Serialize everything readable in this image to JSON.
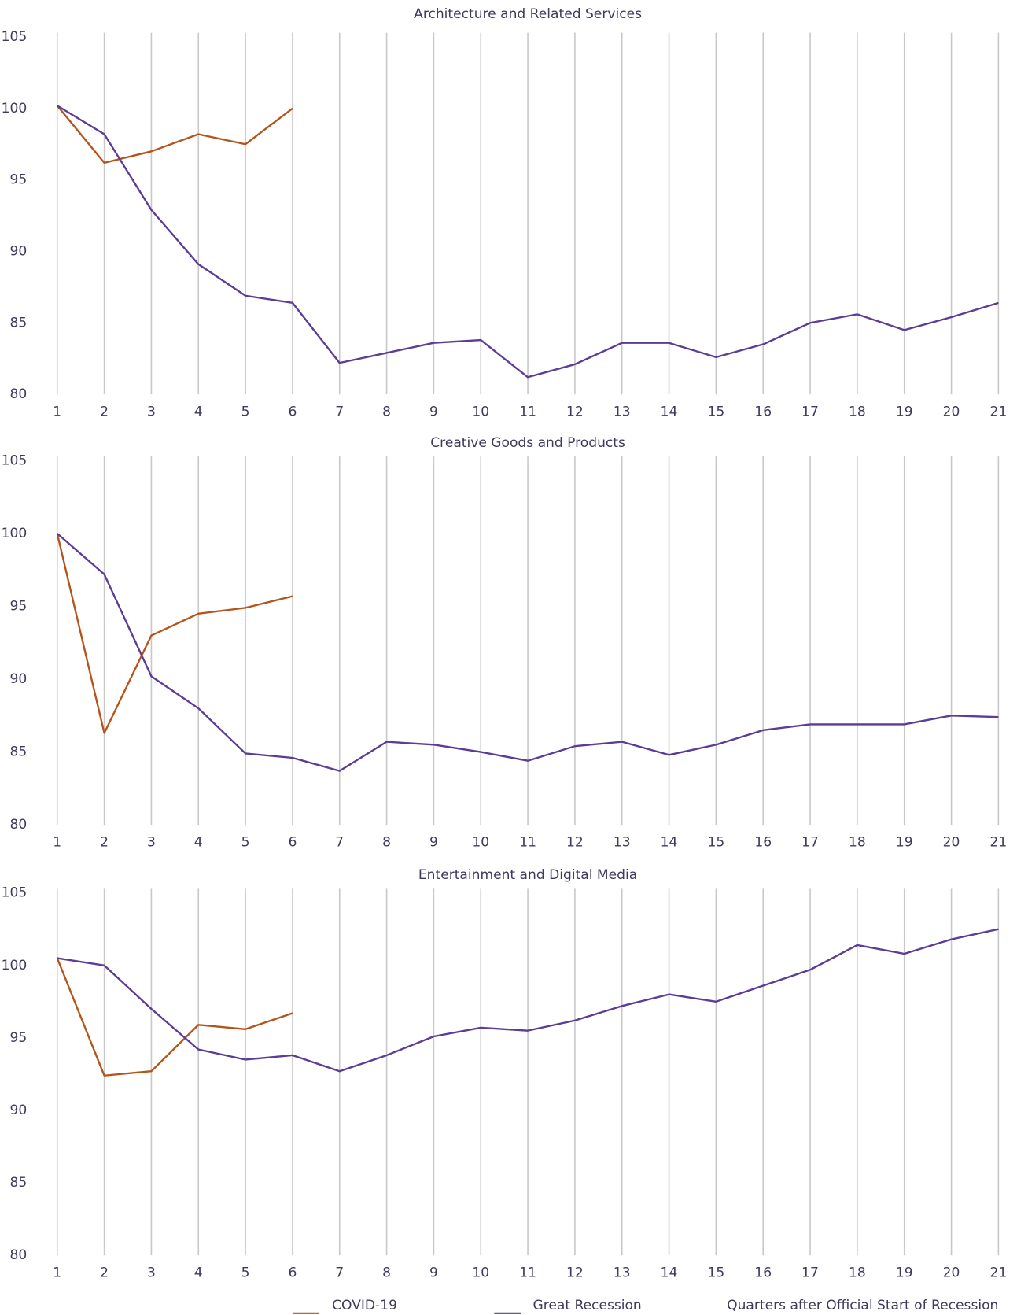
{
  "legend": {
    "series": [
      {
        "name": "COVID-19",
        "color": "#b5541a"
      },
      {
        "name": "Great Recession",
        "color": "#5b3c96"
      }
    ],
    "x_label": "Quarters after Official Start of Recession"
  },
  "chart_data": [
    {
      "type": "line",
      "title": "Architecture and Related Services",
      "x": [
        1,
        2,
        3,
        4,
        5,
        6,
        7,
        8,
        9,
        10,
        11,
        12,
        13,
        14,
        15,
        16,
        17,
        18,
        19,
        20,
        21
      ],
      "series": [
        {
          "values": [
            100.2,
            96.2,
            97.0,
            98.2,
            97.5,
            100.0,
            null,
            null,
            null,
            null,
            null,
            null,
            null,
            null,
            null,
            null,
            null,
            null,
            null,
            null,
            null
          ]
        },
        {
          "values": [
            100.2,
            98.2,
            92.9,
            89.1,
            86.9,
            86.4,
            82.2,
            82.9,
            83.6,
            83.8,
            81.2,
            82.1,
            83.6,
            83.6,
            82.6,
            83.5,
            85.0,
            85.6,
            84.5,
            85.4,
            86.4
          ]
        }
      ],
      "xlim": [
        1,
        21
      ],
      "ylim": [
        80,
        105
      ],
      "yticks": [
        80,
        85,
        90,
        95,
        100,
        105
      ],
      "grid": true
    },
    {
      "type": "line",
      "title": "Creative Goods and Products",
      "x": [
        1,
        2,
        3,
        4,
        5,
        6,
        7,
        8,
        9,
        10,
        11,
        12,
        13,
        14,
        15,
        16,
        17,
        18,
        19,
        20,
        21
      ],
      "series": [
        {
          "values": [
            100.0,
            86.3,
            93.0,
            94.5,
            94.9,
            95.7,
            null,
            null,
            null,
            null,
            null,
            null,
            null,
            null,
            null,
            null,
            null,
            null,
            null,
            null,
            null
          ]
        },
        {
          "values": [
            100.0,
            97.2,
            90.2,
            88.0,
            84.9,
            84.6,
            83.7,
            85.7,
            85.5,
            85.0,
            84.4,
            85.4,
            85.7,
            84.8,
            85.5,
            86.5,
            86.9,
            86.9,
            86.9,
            87.5,
            87.4
          ]
        }
      ],
      "xlim": [
        1,
        21
      ],
      "ylim": [
        80,
        105
      ],
      "yticks": [
        80,
        85,
        90,
        95,
        100,
        105
      ],
      "grid": true
    },
    {
      "type": "line",
      "title": "Entertainment and Digital Media",
      "x": [
        1,
        2,
        3,
        4,
        5,
        6,
        7,
        8,
        9,
        10,
        11,
        12,
        13,
        14,
        15,
        16,
        17,
        18,
        19,
        20,
        21
      ],
      "series": [
        {
          "values": [
            100.5,
            92.4,
            92.7,
            95.9,
            95.6,
            96.7,
            null,
            null,
            null,
            null,
            null,
            null,
            null,
            null,
            null,
            null,
            null,
            null,
            null,
            null,
            null
          ]
        },
        {
          "values": [
            100.5,
            100.0,
            97.0,
            94.2,
            93.5,
            93.8,
            92.7,
            93.8,
            95.1,
            95.7,
            95.5,
            96.2,
            97.2,
            98.0,
            97.5,
            98.6,
            99.7,
            101.4,
            100.8,
            101.8,
            102.5
          ]
        }
      ],
      "xlim": [
        1,
        21
      ],
      "ylim": [
        80,
        105
      ],
      "yticks": [
        80,
        85,
        90,
        95,
        100,
        105
      ],
      "grid": true
    }
  ]
}
